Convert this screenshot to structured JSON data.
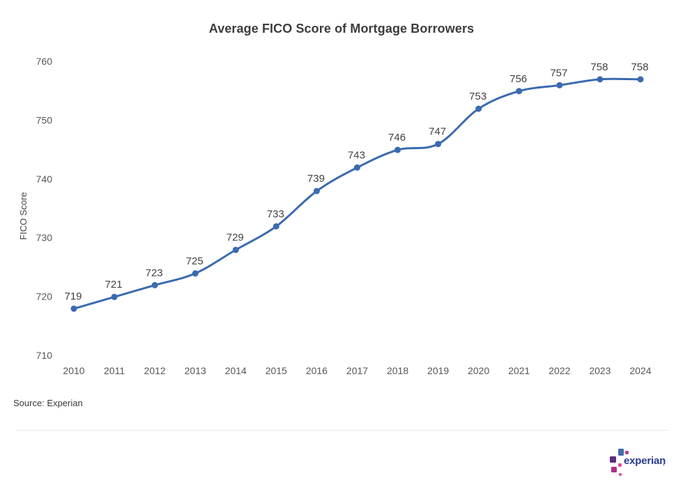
{
  "page": {
    "title": "Average FICO Score of Mortgage Borrowers",
    "source_note": "Source: Experian",
    "logo": {
      "text": "experian",
      "trademark_dot": ".",
      "text_color": "#2b3b8f",
      "square_colors": {
        "blue": "#426CA9",
        "magenta_small": "#BB3D92",
        "purple": "#5D2A84",
        "pink_small": "#D8519E",
        "deep_magenta": "#AE2F86",
        "pink_tiny": "#D8519E"
      }
    }
  },
  "chart_data": {
    "type": "line",
    "title": "Average FICO Score of Mortgage Borrowers",
    "x": [
      "2010",
      "2011",
      "2012",
      "2013",
      "2014",
      "2015",
      "2016",
      "2017",
      "2018",
      "2019",
      "2020",
      "2021",
      "2022",
      "2023",
      "2024"
    ],
    "series": [
      {
        "name": "Average FICO Score",
        "values": [
          719,
          721,
          723,
          725,
          729,
          733,
          739,
          743,
          746,
          747,
          753,
          756,
          757,
          758,
          758
        ]
      }
    ],
    "xlabel": "",
    "ylabel": "FICO Score",
    "yticks": [
      710,
      720,
      730,
      740,
      750,
      760
    ],
    "ylim": [
      707,
      763
    ],
    "grid": false,
    "legend": "none",
    "point_labels_shown": true,
    "line_color": "#3A6AB0",
    "marker_color": "#3A6AB0",
    "tick_color": "#575757",
    "data_label_color": "#414141",
    "source": "Source: Experian"
  }
}
